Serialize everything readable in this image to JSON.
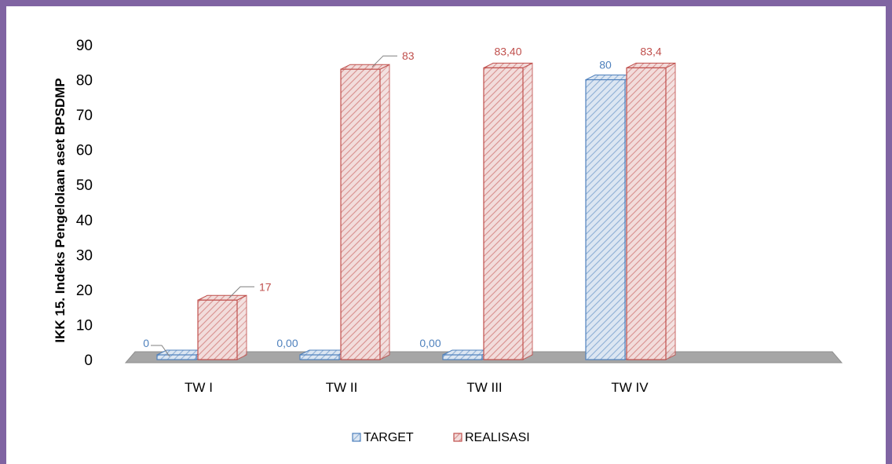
{
  "colors": {
    "frame": "#8064A2",
    "target": "#4F81BD",
    "target_light": "#DCE6F2",
    "realisasi": "#C0504D",
    "realisasi_light": "#F2DCDB",
    "floor": "#A6A6A6",
    "text": "#000000"
  },
  "chart_data": {
    "type": "bar",
    "style": "3d-clustered-column",
    "categories": [
      "TW I",
      "TW II",
      "TW III",
      "TW IV"
    ],
    "series": [
      {
        "name": "TARGET",
        "values": [
          0,
          0,
          0,
          80
        ],
        "labels": [
          "0",
          "0,00",
          "0,00",
          "80"
        ],
        "color": "#4F81BD"
      },
      {
        "name": "REALISASI",
        "values": [
          17,
          83,
          83.4,
          83.4
        ],
        "labels": [
          "17",
          "83",
          "83,40",
          "83,4"
        ],
        "color": "#C0504D"
      }
    ],
    "ylabel": "IKK 15. Indeks Pengelolaan aset BPSDMP",
    "xlabel": "",
    "ylim": [
      0,
      90
    ],
    "yticks": [
      0,
      10,
      20,
      30,
      40,
      50,
      60,
      70,
      80,
      90
    ],
    "grid": false,
    "legend": "bottom"
  }
}
